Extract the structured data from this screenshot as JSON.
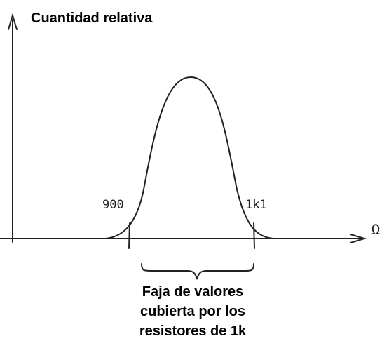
{
  "y_axis": {
    "label": "Cuantidad relativa"
  },
  "x_axis": {
    "unit": "Ω"
  },
  "markers": [
    {
      "label": "900"
    },
    {
      "label": "1k1"
    }
  ],
  "caption": [
    "Faja de valores",
    "cubierta por los",
    "resistores de 1k"
  ]
}
